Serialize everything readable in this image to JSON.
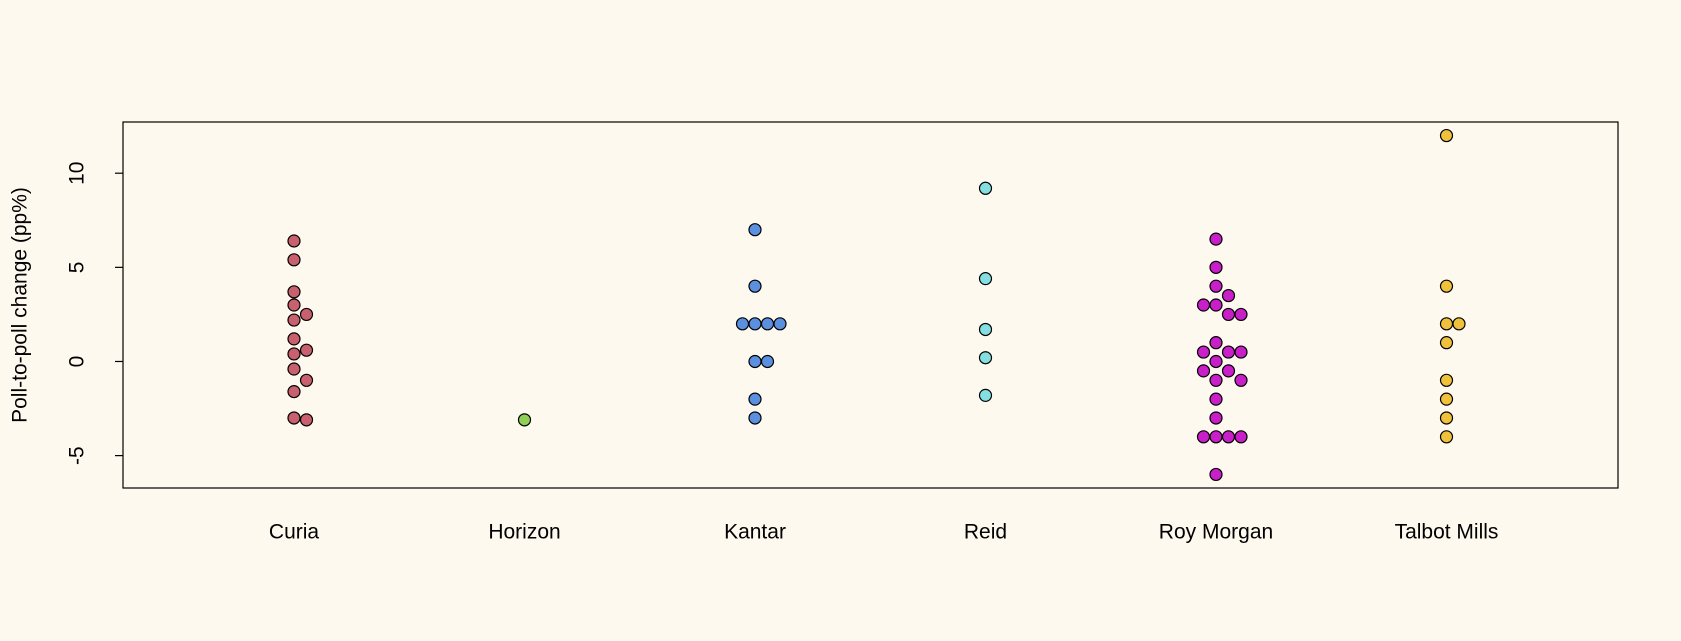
{
  "chart_data": {
    "type": "beeswarm",
    "y_label": "Poll-to-poll change (pp%)",
    "series": [
      {
        "name": "Curia",
        "color": "#c8606e",
        "values": [
          6.4,
          5.4,
          3.7,
          3.0,
          2.5,
          2.2,
          1.2,
          0.6,
          0.4,
          -0.4,
          -1.0,
          -1.6,
          -3.0,
          -3.1
        ]
      },
      {
        "name": "Horizon",
        "color": "#8fcf56",
        "values": [
          -3.1
        ]
      },
      {
        "name": "Kantar",
        "color": "#5b8fe0",
        "values": [
          7,
          4,
          2,
          2,
          2,
          2,
          0,
          0,
          -2,
          -3
        ]
      },
      {
        "name": "Reid",
        "color": "#84e0e0",
        "values": [
          9.2,
          4.4,
          1.7,
          0.2,
          -1.8
        ]
      },
      {
        "name": "Roy Morgan",
        "color": "#c81fc8",
        "values": [
          6.5,
          5,
          4,
          3.5,
          3,
          3,
          2.5,
          2.5,
          1,
          0.5,
          0.5,
          0.5,
          0,
          -0.5,
          -0.5,
          -1,
          -1,
          -2,
          -3,
          -4,
          -4,
          -4,
          -4,
          -6
        ]
      },
      {
        "name": "Talbot Mills",
        "color": "#f0c23c",
        "values": [
          12,
          4,
          2,
          2,
          1,
          -1,
          -2,
          -3,
          -4
        ]
      }
    ],
    "ylim": [
      -6.72,
      12.72
    ],
    "yticks": [
      -5,
      0,
      5,
      10
    ]
  }
}
